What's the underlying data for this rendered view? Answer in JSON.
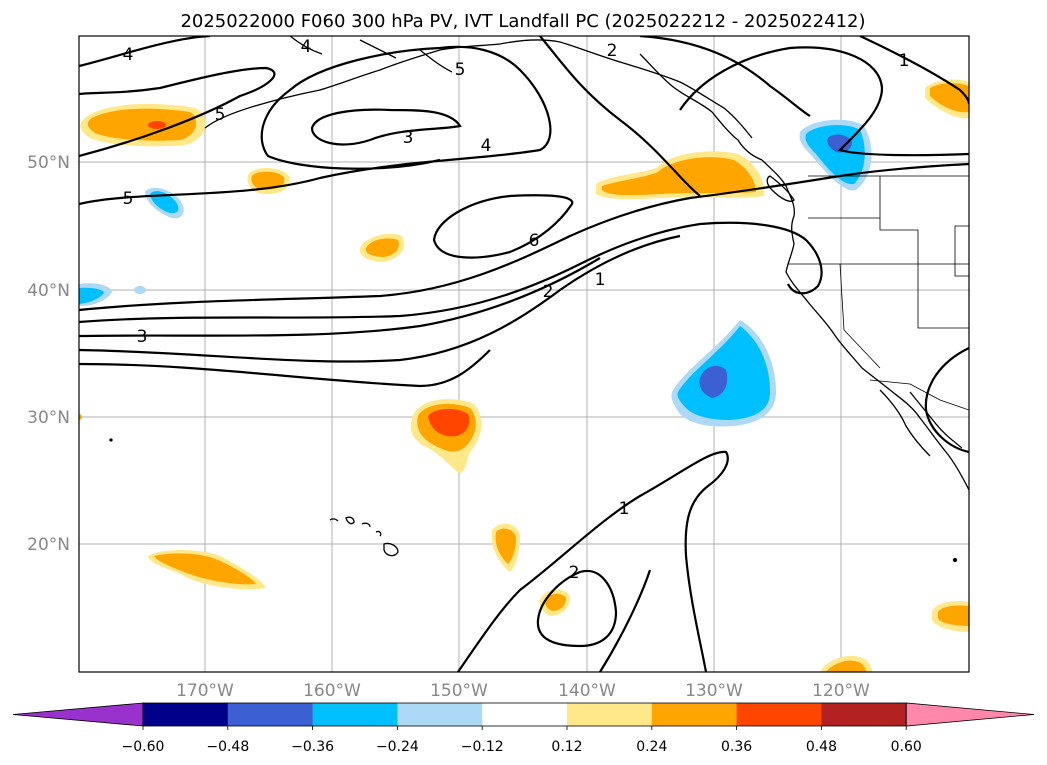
{
  "title": "2025022000 F060 300 hPa PV, IVT Landfall PC (2025022212 - 2025022412)",
  "axes": {
    "lat_labels": [
      "50°N",
      "40°N",
      "30°N",
      "20°N"
    ],
    "lon_labels": [
      "170°W",
      "160°W",
      "150°W",
      "140°W",
      "130°W",
      "120°W"
    ],
    "grid": true
  },
  "colorbar": {
    "extend": "both",
    "tick_labels": [
      "−0.60",
      "−0.48",
      "−0.36",
      "−0.24",
      "−0.12",
      "0.12",
      "0.24",
      "0.36",
      "0.48",
      "0.60"
    ],
    "colors": [
      "#9932cc",
      "#00008b",
      "#3c5fd3",
      "#00bfff",
      "#add8f6",
      "#ffffff",
      "#ffe88a",
      "#ffa500",
      "#ff4500",
      "#b22222",
      "#ff88aa"
    ]
  },
  "contour_labels": [
    "4",
    "4",
    "5",
    "2",
    "1",
    "5",
    "3",
    "4",
    "5",
    "6",
    "2",
    "1",
    "3",
    "1",
    "2"
  ]
}
